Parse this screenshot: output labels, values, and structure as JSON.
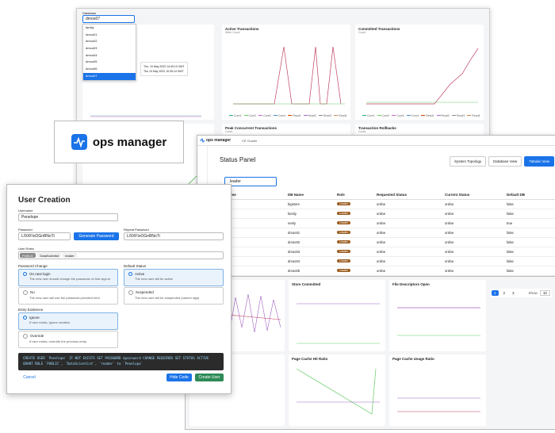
{
  "dashboard": {
    "database_label": "Database",
    "database_value": "dmoo07",
    "database_options": [
      "family",
      "dmoo01",
      "dmoo02",
      "dmoo03",
      "dmoo04",
      "dmoo05",
      "dmoo06",
      "dmoo07"
    ],
    "charts": [
      {
        "title": "Active Transactions",
        "subtitle": "Write Count"
      },
      {
        "title": "Committed Transactions",
        "subtitle": "Count"
      },
      {
        "title": "Peak Concurrent Transactions",
        "subtitle": "Count"
      },
      {
        "title": "Transaction Rollbacks",
        "subtitle": "Count"
      }
    ],
    "tooltip": [
      "Thu, 19 May 2022 14:40:10 GMT",
      "Thu 19 May 2022 10:05:14 GMT"
    ],
    "legend": [
      "Core1",
      "Core2",
      "Core3",
      "Core4",
      "Read1",
      "Read2",
      "Read3",
      "Read4"
    ]
  },
  "logo": {
    "text": "ops manager"
  },
  "status_panel": {
    "brand": "ops manager",
    "cluster": "CE Cluster",
    "title": "Status Panel",
    "views": [
      "System Topology",
      "Database View",
      "Tabular View"
    ],
    "search": "leader",
    "columns": [
      "Member Name",
      "DB Name",
      "Role",
      "Requested Status",
      "Current Status",
      "Default DB"
    ],
    "rows": [
      [
        "bigstore",
        "Leader",
        "online",
        "online",
        "false"
      ],
      [
        "family",
        "Leader",
        "online",
        "online",
        "false"
      ],
      [
        "neely",
        "Leader",
        "online",
        "online",
        "true"
      ],
      [
        "dmoo01",
        "Leader",
        "online",
        "online",
        "false"
      ],
      [
        "dmoo02",
        "Leader",
        "online",
        "online",
        "false"
      ],
      [
        "dmoo03",
        "Leader",
        "online",
        "online",
        "false"
      ],
      [
        "dmoo04",
        "Leader",
        "online",
        "online",
        "false"
      ],
      [
        "dmoo05",
        "Leader",
        "online",
        "online",
        "false"
      ],
      [
        "dmoo06",
        "Leader",
        "online",
        "online",
        "false"
      ]
    ],
    "pages": [
      "1",
      "2",
      "3"
    ],
    "show": "Show",
    "page_size": "10"
  },
  "metrics": {
    "charts": [
      "Store Committed",
      "File Descriptors Open",
      "Page Cache Hit Ratio",
      "Page Cache Usage Ratio"
    ]
  },
  "user_creation": {
    "title": "User Creation",
    "username_label": "Username",
    "username": "Penelope",
    "password_label": "Password",
    "password": "L/9XFIoOGnBNoTi",
    "generate": "Generate Password",
    "repeat_label": "Repeat Password",
    "repeat": "L/9XFIoOGnBNoTi",
    "roles_label": "User Roles",
    "roles": [
      "PUBLIC",
      "DataScientist",
      "reader"
    ],
    "password_change": {
      "label": "Password Change",
      "options": [
        {
          "title": "On next login",
          "desc": "The new user should change the password on first sign-in"
        },
        {
          "title": "No",
          "desc": "The new user will use the password provided here"
        }
      ]
    },
    "default_status": {
      "label": "Default Status",
      "options": [
        {
          "title": "Active",
          "desc": "The new user will be active"
        },
        {
          "title": "Suspended",
          "desc": "The new user will be suspended (cannot sign)"
        }
      ]
    },
    "entry_existence": {
      "label": "Entry Existence",
      "options": [
        {
          "title": "Ignore",
          "desc": "If user exists, ignore creation"
        },
        {
          "title": "Override",
          "desc": "If user exists, override the previous entry"
        }
      ]
    },
    "code": [
      "CREATE USER `Penelope` IF NOT EXISTS SET PASSWORD $password CHANGE REQUIRED SET STATUS ACTIVE",
      "GRANT ROLE `PUBLIC`, `DataScientist`, `reader` to `Penelope`"
    ],
    "cancel": "Cancel",
    "hide_code": "Hide Code",
    "create": "Create User"
  }
}
